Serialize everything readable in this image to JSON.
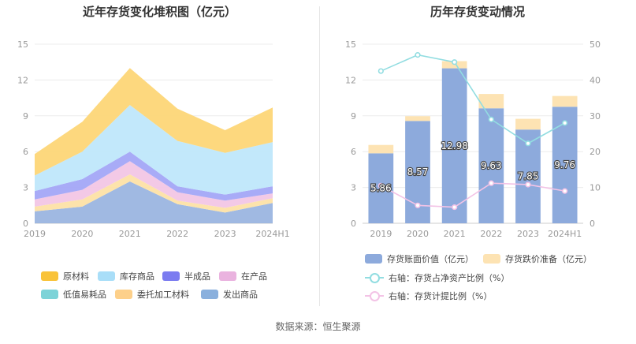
{
  "source": "数据来源：恒生聚源",
  "chart_data": [
    {
      "type": "area",
      "stacked": true,
      "title": "近年存货变化堆积图（亿元）",
      "x": [
        "2019",
        "2020",
        "2021",
        "2022",
        "2023",
        "2024H1"
      ],
      "ylim": [
        0,
        15
      ],
      "yticks": [
        0,
        3,
        6,
        9,
        12,
        15
      ],
      "grid": true,
      "series": [
        {
          "name": "发出商品",
          "color": "#9bb5e0",
          "values": [
            1.0,
            1.4,
            3.5,
            1.6,
            0.9,
            1.7
          ]
        },
        {
          "name": "委托加工材料",
          "color": "#fde1a6",
          "values": [
            0.4,
            0.6,
            0.6,
            0.3,
            0.4,
            0.4
          ]
        },
        {
          "name": "低值易耗品",
          "color": "#7dd3d8",
          "values": [
            0.0,
            0.0,
            0.0,
            0.0,
            0.0,
            0.0
          ]
        },
        {
          "name": "在产品",
          "color": "#f2c6e5",
          "values": [
            0.6,
            0.8,
            1.1,
            0.7,
            0.6,
            0.4
          ]
        },
        {
          "name": "半成品",
          "color": "#a3a6f7",
          "values": [
            0.7,
            0.9,
            0.8,
            0.5,
            0.5,
            0.6
          ]
        },
        {
          "name": "库存商品",
          "color": "#bfe7fb",
          "values": [
            1.3,
            2.3,
            3.9,
            3.8,
            3.5,
            3.7
          ]
        },
        {
          "name": "原材料",
          "color": "#fdd677",
          "values": [
            1.8,
            2.5,
            3.1,
            2.7,
            1.9,
            2.9
          ]
        }
      ],
      "legend": [
        {
          "name": "原材料",
          "color": "#f9c33a"
        },
        {
          "name": "库存商品",
          "color": "#a9def8"
        },
        {
          "name": "半成品",
          "color": "#7b7cf0"
        },
        {
          "name": "在产品",
          "color": "#eab3df"
        },
        {
          "name": "低值易耗品",
          "color": "#7dd3d8"
        },
        {
          "name": "委托加工材料",
          "color": "#fdd08a"
        },
        {
          "name": "发出商品",
          "color": "#8ab0dd"
        }
      ]
    },
    {
      "type": "bar",
      "title": "历年存货变动情况",
      "categories": [
        "2019",
        "2020",
        "2021",
        "2022",
        "2023",
        "2024H1"
      ],
      "ylim": [
        0,
        15
      ],
      "yticks": [
        0,
        3,
        6,
        9,
        12,
        15
      ],
      "y2lim": [
        0,
        50
      ],
      "y2ticks": [
        0,
        10,
        20,
        30,
        40,
        50
      ],
      "grid": true,
      "bars": [
        {
          "name": "存货账面价值（亿元）",
          "color": "#8daadc",
          "values": [
            5.86,
            8.57,
            12.98,
            9.63,
            7.85,
            9.76
          ],
          "labels": [
            "5.86",
            "8.57",
            "12.98",
            "9.63",
            "7.85",
            "9.76"
          ]
        },
        {
          "name": "存货跌价准备（亿元）",
          "color": "#fde3b3",
          "values": [
            0.7,
            0.4,
            0.6,
            1.2,
            0.9,
            0.9
          ]
        }
      ],
      "lines": [
        {
          "name": "右轴：存货占净资产比例（%）",
          "color": "#92dde1",
          "axis": "right",
          "values": [
            42.5,
            47.0,
            45.0,
            29.0,
            22.3,
            28.0
          ]
        },
        {
          "name": "右轴：存货计提比例（%）",
          "color": "#f3c3e6",
          "axis": "right",
          "values": [
            10.5,
            5.0,
            4.5,
            11.2,
            10.8,
            9.0
          ]
        }
      ]
    }
  ]
}
